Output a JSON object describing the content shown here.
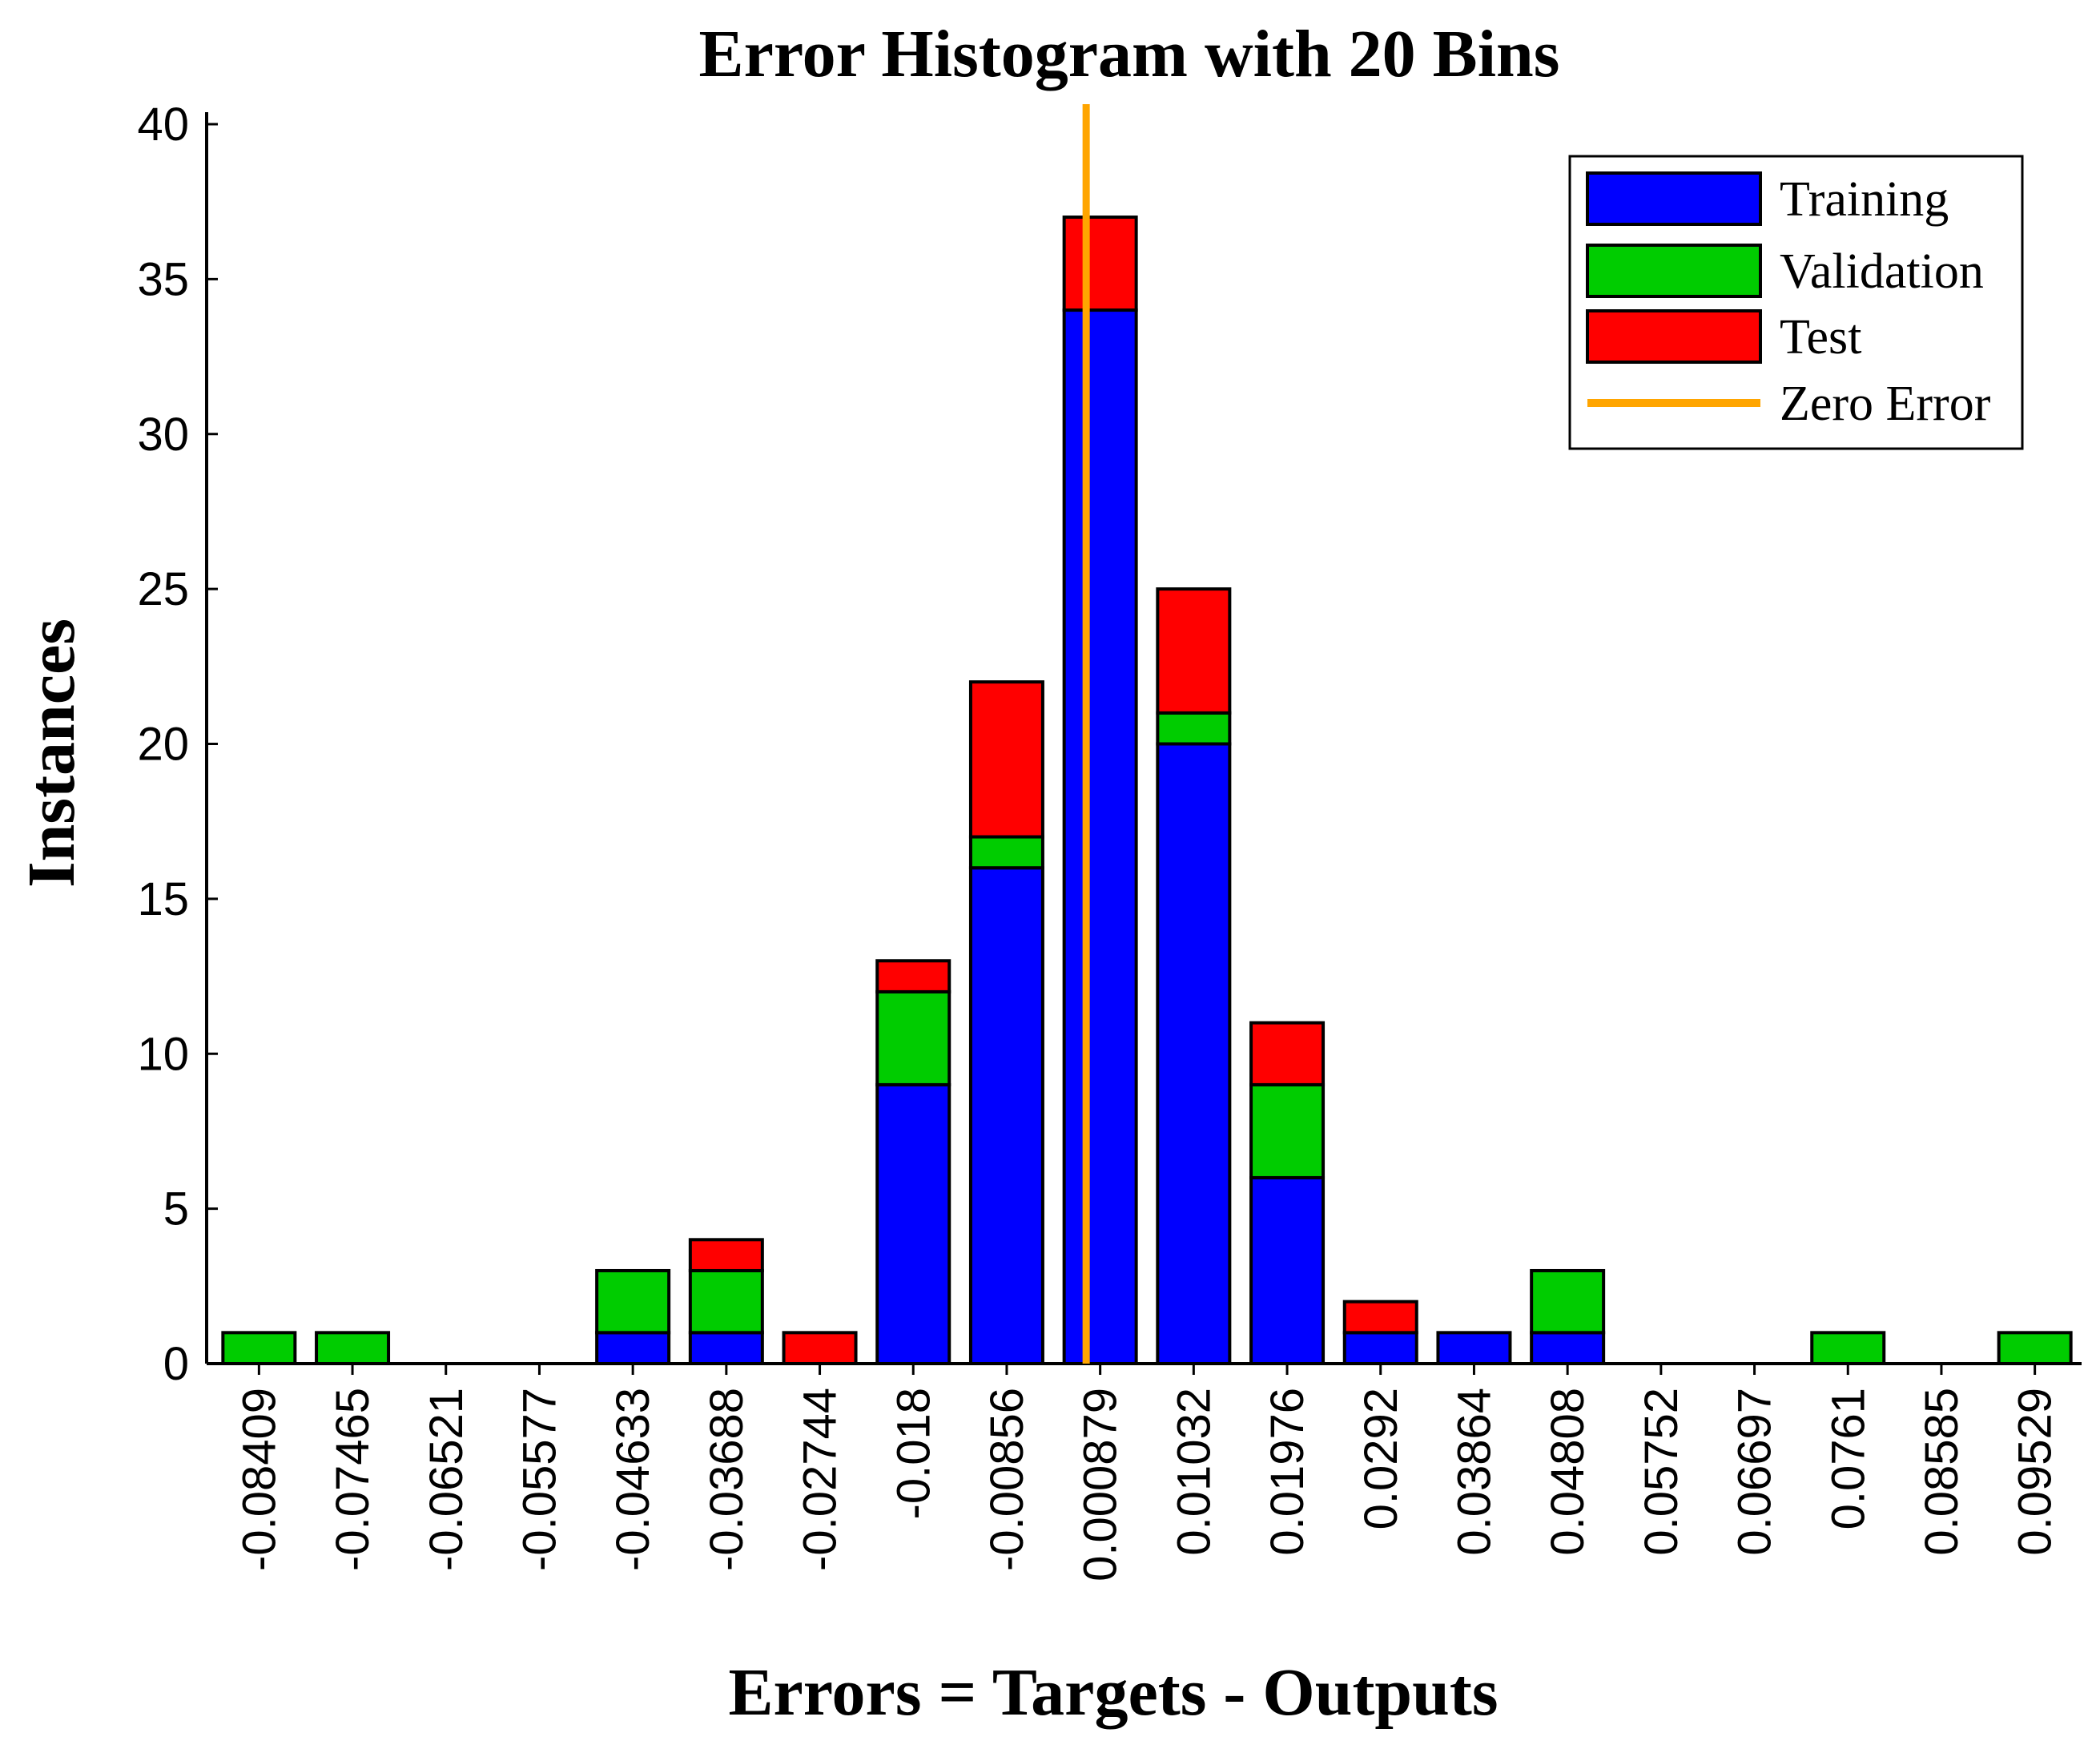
{
  "chart_data": {
    "type": "bar",
    "stacked": true,
    "title": "Error Histogram with 20 Bins",
    "xlabel": "Errors = Targets - Outputs",
    "ylabel": "Instances",
    "ylim": [
      0,
      40
    ],
    "yticks": [
      0,
      5,
      10,
      15,
      20,
      25,
      30,
      35,
      40
    ],
    "categories": [
      "-0.08409",
      "-0.07465",
      "-0.06521",
      "-0.05577",
      "-0.04633",
      "-0.03688",
      "-0.02744",
      "-0.018",
      "-0.00856",
      "0.000879",
      "0.01032",
      "0.01976",
      "0.0292",
      "0.03864",
      "0.04808",
      "0.05752",
      "0.06697",
      "0.0761",
      "0.08585",
      "0.09529"
    ],
    "series": [
      {
        "name": "Training",
        "color": "#0000ff",
        "values": [
          0,
          0,
          0,
          0,
          1,
          1,
          0,
          9,
          16,
          34,
          20,
          6,
          1,
          1,
          1,
          0,
          0,
          0,
          0,
          0
        ]
      },
      {
        "name": "Validation",
        "color": "#00cc00",
        "values": [
          1,
          1,
          0,
          0,
          2,
          2,
          0,
          3,
          1,
          0,
          1,
          3,
          0,
          0,
          2,
          0,
          0,
          1,
          0,
          1
        ]
      },
      {
        "name": "Test",
        "color": "#ff0000",
        "values": [
          0,
          0,
          0,
          0,
          0,
          1,
          1,
          1,
          5,
          3,
          4,
          2,
          1,
          0,
          0,
          0,
          0,
          0,
          0,
          0
        ]
      }
    ],
    "zero_error": {
      "name": "Zero Error",
      "color": "#ffa500",
      "x_bin_position": 9.35
    },
    "legend_position": "top-right",
    "grid": false
  }
}
